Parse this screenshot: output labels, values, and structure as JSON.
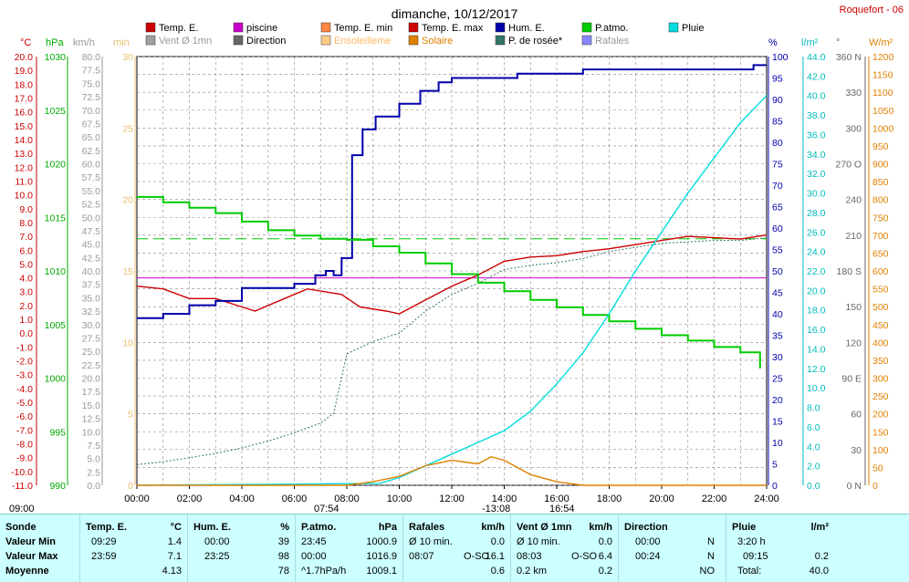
{
  "header": {
    "title": "dimanche, 10/12/2017",
    "station": "Roquefort - 06"
  },
  "legend": [
    {
      "label": "Temp. E.",
      "color": "#cc0000"
    },
    {
      "label": "piscine",
      "color": "#cc00cc"
    },
    {
      "label": "Temp. E. min",
      "color": "#ff8844"
    },
    {
      "label": "Temp. E. max",
      "color": "#cc0000"
    },
    {
      "label": "Hum. E.",
      "color": "#0000aa"
    },
    {
      "label": "P.atmo.",
      "color": "#00cc00"
    },
    {
      "label": "Pluie",
      "color": "#00dddd"
    },
    {
      "label": "Vent Ø 1mn",
      "color": "#a0a0a0"
    },
    {
      "label": "Direction",
      "color": "#666666"
    },
    {
      "label": "Ensoleilleme",
      "color": "#ffcc88"
    },
    {
      "label": "Solaire",
      "color": "#e08000"
    },
    {
      "label": "P. de rosée*",
      "color": "#337766"
    },
    {
      "label": "Rafales",
      "color": "#8888ff"
    }
  ],
  "axes": {
    "temp_unit": "°C",
    "pres_unit": "hPa",
    "wind_unit": "km/h",
    "min_unit": "min",
    "hum_unit": "%",
    "rain_unit": "l/m²",
    "dir_unit": "°",
    "solar_unit": "W/m²",
    "temp_ticks": [
      "20.0",
      "19.0",
      "18.0",
      "17.0",
      "16.0",
      "15.0",
      "14.0",
      "13.0",
      "12.0",
      "11.0",
      "10.0",
      "9.0",
      "8.0",
      "7.0",
      "6.0",
      "5.0",
      "4.0",
      "3.0",
      "2.0",
      "1.0",
      "0.0",
      "-1.0",
      "-2.0",
      "-3.0",
      "-4.0",
      "-5.0",
      "-6.0",
      "-7.0",
      "-8.0",
      "-9.0",
      "-10.0",
      "-11.0"
    ],
    "pres_ticks": [
      "1030",
      "1025",
      "1020",
      "1015",
      "1010",
      "1005",
      "1000",
      "995",
      "990"
    ],
    "wind_ticks": [
      "80.0",
      "77.5",
      "75.0",
      "72.5",
      "70.0",
      "67.5",
      "65.0",
      "62.5",
      "60.0",
      "57.5",
      "55.0",
      "52.5",
      "50.0",
      "47.5",
      "45.0",
      "42.5",
      "40.0",
      "37.5",
      "35.0",
      "32.5",
      "30.0",
      "27.5",
      "25.0",
      "22.5",
      "20.0",
      "17.5",
      "15.0",
      "12.5",
      "10.0",
      "7.5",
      "5.0",
      "2.5",
      "0.0"
    ],
    "min_ticks": [
      "30",
      "25",
      "20",
      "15",
      "10",
      "5",
      "0"
    ],
    "hum_ticks": [
      "100",
      "95",
      "90",
      "85",
      "80",
      "75",
      "70",
      "65",
      "60",
      "55",
      "50",
      "45",
      "40",
      "35",
      "30",
      "25",
      "20",
      "15",
      "10",
      "5",
      "0"
    ],
    "rain_ticks": [
      "44.0",
      "42.0",
      "40.0",
      "38.0",
      "36.0",
      "34.0",
      "32.0",
      "30.0",
      "28.0",
      "26.0",
      "24.0",
      "22.0",
      "20.0",
      "18.0",
      "16.0",
      "14.0",
      "12.0",
      "10.0",
      "8.0",
      "6.0",
      "4.0",
      "2.0",
      "0.0"
    ],
    "dir_ticks": [
      "360 N",
      "330",
      "300",
      "270 O",
      "240",
      "210",
      "180 S",
      "150",
      "120",
      "90 E",
      "60",
      "30",
      "0 N"
    ],
    "solar_ticks": [
      "1200",
      "1150",
      "1100",
      "1050",
      "1000",
      "950",
      "900",
      "850",
      "800",
      "750",
      "700",
      "650",
      "600",
      "550",
      "500",
      "450",
      "400",
      "350",
      "300",
      "250",
      "200",
      "150",
      "100",
      "50",
      "0"
    ],
    "time_ticks": [
      "00:00",
      "02:00",
      "04:00",
      "06:00",
      "08:00",
      "10:00",
      "12:00",
      "14:00",
      "16:00",
      "18:00",
      "20:00",
      "22:00",
      "24:00"
    ]
  },
  "sun": {
    "day_start": "09:00",
    "sunrise": "07:54",
    "solar_noon": "-13:08",
    "sunset": "16:54"
  },
  "chart_data": {
    "type": "line",
    "x_unit": "hour",
    "xlim": [
      0,
      24
    ],
    "series": [
      {
        "name": "Temp. E.",
        "axis": "°C",
        "ylim": [
          -11,
          20
        ],
        "x": [
          0,
          1,
          2,
          3,
          4.5,
          5.5,
          6.5,
          7.8,
          8.5,
          9.5,
          10,
          11,
          12,
          13,
          14,
          15,
          16,
          17,
          18,
          19,
          20,
          21,
          22,
          23,
          24
        ],
        "values": [
          3.4,
          3.2,
          2.5,
          2.5,
          1.6,
          2.4,
          3.2,
          2.8,
          1.9,
          1.6,
          1.4,
          2.4,
          3.4,
          4.2,
          5.2,
          5.5,
          5.6,
          5.9,
          6.1,
          6.4,
          6.7,
          7.0,
          6.9,
          6.8,
          7.1
        ]
      },
      {
        "name": "P. de rosée*",
        "axis": "°C",
        "ylim": [
          -11,
          20
        ],
        "x": [
          0,
          1,
          2,
          3,
          4,
          5,
          6,
          7,
          7.5,
          8,
          9,
          10,
          11,
          12,
          13,
          14,
          15,
          16,
          17,
          18,
          19,
          20,
          21,
          22,
          23,
          24
        ],
        "values": [
          -9.5,
          -9.3,
          -9.0,
          -8.7,
          -8.3,
          -7.8,
          -7.2,
          -6.5,
          -5.8,
          -1.5,
          -0.6,
          0,
          1.6,
          2.8,
          3.6,
          4.6,
          4.9,
          5.1,
          5.4,
          5.9,
          6.2,
          6.5,
          6.6,
          6.7,
          6.7,
          6.9
        ]
      },
      {
        "name": "Hum. E.",
        "axis": "%",
        "ylim": [
          0,
          100
        ],
        "x": [
          0,
          1,
          2,
          3,
          4,
          5,
          6,
          6.8,
          7.2,
          7.5,
          7.8,
          8.2,
          8.6,
          9.1,
          10,
          10.8,
          11.5,
          12,
          13,
          14,
          14.5,
          16,
          17,
          18,
          20,
          22,
          23.5,
          24
        ],
        "values": [
          39,
          40,
          42,
          43,
          46,
          46,
          47,
          49,
          50,
          49,
          53,
          77,
          83,
          86,
          89,
          92,
          94,
          95,
          95,
          95,
          96,
          96,
          97,
          97,
          97,
          97,
          98,
          98
        ]
      },
      {
        "name": "P.atmo.",
        "axis": "hPa",
        "ylim": [
          990,
          1030
        ],
        "x": [
          0,
          1,
          2,
          3,
          4,
          5,
          6,
          7,
          8,
          9,
          10,
          11,
          12,
          13,
          14,
          15,
          16,
          17,
          18,
          19,
          20,
          21,
          22,
          23,
          23.75
        ],
        "values": [
          1016.9,
          1016.4,
          1015.9,
          1015.4,
          1014.6,
          1013.8,
          1013.3,
          1013.0,
          1012.9,
          1012.3,
          1011.7,
          1010.7,
          1009.7,
          1008.9,
          1008.1,
          1007.3,
          1006.6,
          1005.9,
          1005.3,
          1004.6,
          1004.0,
          1003.5,
          1002.9,
          1002.4,
          1000.9
        ]
      },
      {
        "name": "Pluie",
        "axis": "l/m²",
        "ylim": [
          0,
          44
        ],
        "x": [
          0,
          9.25,
          10,
          11,
          12,
          13,
          14,
          15,
          16,
          17,
          18,
          19,
          20,
          21,
          22,
          23,
          24
        ],
        "values": [
          0,
          0.2,
          0.8,
          2.0,
          3.2,
          4.4,
          5.6,
          7.6,
          10.4,
          13.6,
          17.6,
          22.0,
          26.0,
          30.0,
          33.6,
          37.2,
          40.0
        ]
      },
      {
        "name": "Solaire",
        "axis": "W/m²",
        "ylim": [
          0,
          1200
        ],
        "x": [
          0,
          8,
          9,
          10,
          11,
          12,
          13,
          13.5,
          14,
          15,
          16,
          17,
          24
        ],
        "values": [
          0,
          0,
          10,
          25,
          55,
          70,
          60,
          80,
          70,
          30,
          10,
          0,
          0
        ]
      }
    ],
    "reference_lines": [
      {
        "name": "piscine",
        "axis": "°C",
        "value": 4.0
      },
      {
        "name": "P.atmo. ref",
        "axis": "hPa",
        "value": 1013.0
      }
    ]
  },
  "summary": {
    "columns": [
      {
        "name": "Sonde",
        "unit": ""
      },
      {
        "name": "Temp. E.",
        "unit": "°C"
      },
      {
        "name": "Hum. E.",
        "unit": "%"
      },
      {
        "name": "P.atmo.",
        "unit": "hPa"
      },
      {
        "name": "Rafales",
        "unit": "km/h"
      },
      {
        "name": "Vent Ø 1mn",
        "unit": "km/h"
      },
      {
        "name": "Direction",
        "unit": ""
      },
      {
        "name": "Pluie",
        "unit": "l/m²"
      }
    ],
    "row_labels": [
      "Valeur Min",
      "Valeur Max",
      "Moyenne"
    ],
    "temp": {
      "min_time": "09:29",
      "min": "1.4",
      "max_time": "23:59",
      "max": "7.1",
      "avg": "4.13"
    },
    "hum": {
      "min_time": "00:00",
      "min": "39",
      "max_time": "23:25",
      "max": "98",
      "avg": "78"
    },
    "pres": {
      "min_time": "23:45",
      "min": "1000.9",
      "max_time": "00:00",
      "max": "1016.9",
      "avg_note": "^1.7hPa/h",
      "avg": "1009.1"
    },
    "gust": {
      "min_label": "Ø 10 min.",
      "min": "0.0",
      "max_time": "08:07",
      "max_dir": "O-SO",
      "max": "16.1",
      "avg": "0.6"
    },
    "wind": {
      "min_label": "Ø 10 min.",
      "min": "0.0",
      "max_time": "08:03",
      "max_dir": "O-SO",
      "max": "6.4",
      "avg_dist": "0.2 km",
      "avg": "0.2"
    },
    "dir": {
      "min_time": "00:00",
      "min": "N",
      "max_time": "00:24",
      "max": "N",
      "avg": "NO"
    },
    "rain": {
      "min_time": "3:20 h",
      "min": "",
      "max_time": "09:15",
      "max": "0.2",
      "avg_label": "Total:",
      "avg": "40.0"
    }
  }
}
